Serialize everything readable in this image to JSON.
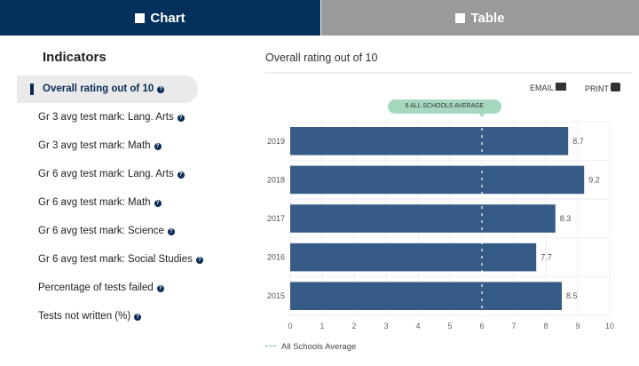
{
  "tabs": [
    {
      "label": "Chart",
      "icon": "bar-chart-icon"
    },
    {
      "label": "Table",
      "icon": "table-icon"
    }
  ],
  "sidebar": {
    "title": "Indicators",
    "items": [
      "Overall rating out of 10",
      "Gr 3 avg test mark: Lang. Arts",
      "Gr 3 avg test mark: Math",
      "Gr 6 avg test mark: Lang. Arts",
      "Gr 6 avg test mark: Math",
      "Gr 6 avg test mark: Science",
      "Gr 6 avg test mark: Social Studies",
      "Percentage of tests failed",
      "Tests not written (%)"
    ],
    "help_glyph": "?"
  },
  "main": {
    "title": "Overall rating out of 10",
    "email": "EMAIL",
    "print": "PRINT"
  },
  "colors": {
    "bar": "#365b86",
    "accent": "#04305c",
    "avg": "#a6d8c0"
  },
  "chart_data": {
    "type": "bar",
    "orientation": "horizontal",
    "categories": [
      "2019",
      "2018",
      "2017",
      "2016",
      "2015"
    ],
    "values": [
      8.7,
      9.2,
      8.3,
      7.7,
      8.5
    ],
    "xlim": [
      0,
      10
    ],
    "xticks": [
      "0",
      "1",
      "2",
      "3",
      "4",
      "5",
      "6",
      "7",
      "8",
      "9",
      "10"
    ],
    "reference_line": {
      "value": 6,
      "label": "6 ALL SCHOOLS AVERAGE"
    },
    "legend": "All Schools Average",
    "grid": true
  }
}
